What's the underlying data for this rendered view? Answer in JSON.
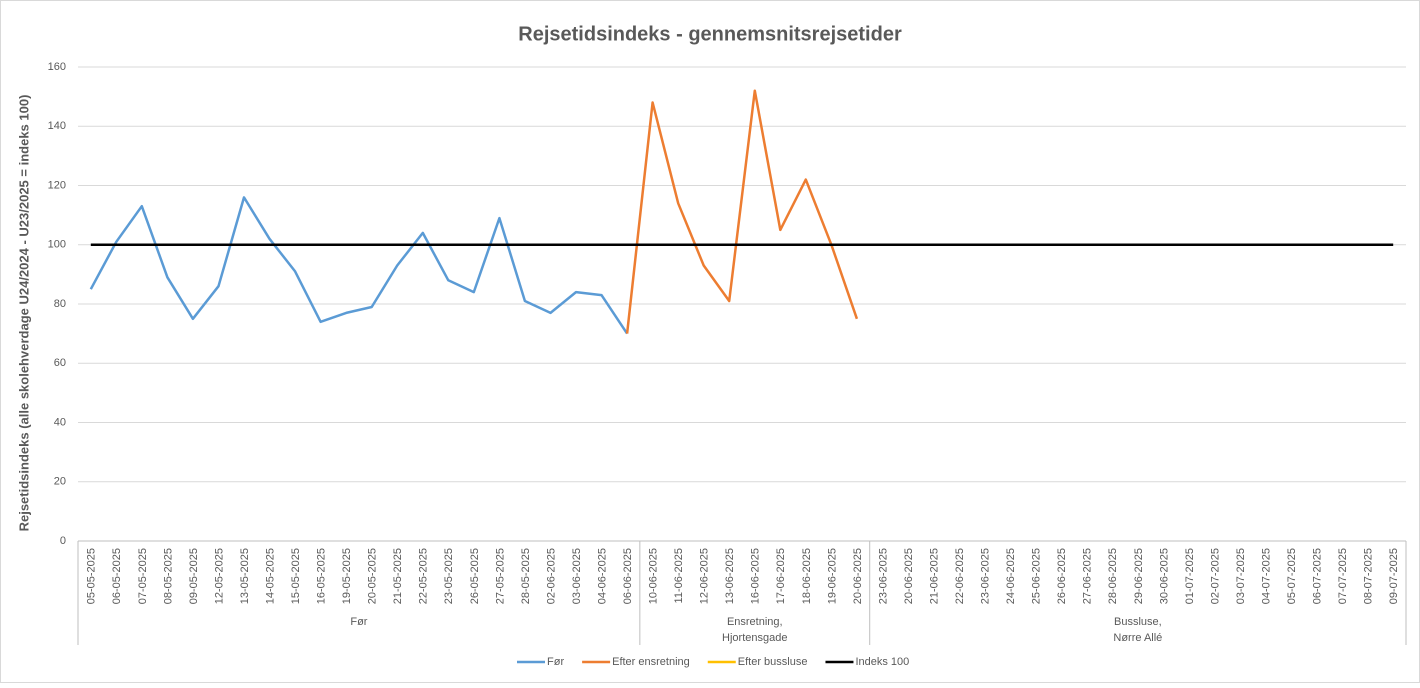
{
  "chart_data": {
    "type": "line",
    "title": "Rejsetidsindeks - gennemsnitsrejsetider",
    "y_label": "Rejsetidsindeks (alle skolehverdage U24/2024 - U23/2025 = indeks 100)",
    "categories": [
      "05-05-2025",
      "06-05-2025",
      "07-05-2025",
      "08-05-2025",
      "09-05-2025",
      "12-05-2025",
      "13-05-2025",
      "14-05-2025",
      "15-05-2025",
      "16-05-2025",
      "19-05-2025",
      "20-05-2025",
      "21-05-2025",
      "22-05-2025",
      "23-05-2025",
      "26-05-2025",
      "27-05-2025",
      "28-05-2025",
      "02-06-2025",
      "03-06-2025",
      "04-06-2025",
      "06-06-2025",
      "10-06-2025",
      "11-06-2025",
      "12-06-2025",
      "13-06-2025",
      "16-06-2025",
      "17-06-2025",
      "18-06-2025",
      "19-06-2025",
      "20-06-2025",
      "23-06-2025",
      "20-06-2025",
      "21-06-2025",
      "22-06-2025",
      "23-06-2025",
      "24-06-2025",
      "25-06-2025",
      "26-06-2025",
      "27-06-2025",
      "28-06-2025",
      "29-06-2025",
      "30-06-2025",
      "01-07-2025",
      "02-07-2025",
      "03-07-2025",
      "04-07-2025",
      "05-07-2025",
      "06-07-2025",
      "07-07-2025",
      "08-07-2025",
      "09-07-2025"
    ],
    "groups": [
      {
        "label": [
          "Før"
        ],
        "span": 22
      },
      {
        "label": [
          "Ensretning,",
          "Hjortensgade"
        ],
        "span": 9
      },
      {
        "label": [
          "Bussluse,",
          "Nørre Allé"
        ],
        "span": 21
      }
    ],
    "series": [
      {
        "name": "Før",
        "color": "#5b9bd5",
        "values": [
          85,
          101,
          113,
          89,
          75,
          86,
          116,
          102,
          91,
          74,
          77,
          79,
          93,
          104,
          88,
          84,
          109,
          81,
          77,
          84,
          83,
          70,
          null,
          null,
          null,
          null,
          null,
          null,
          null,
          null,
          null,
          null,
          null,
          null,
          null,
          null,
          null,
          null,
          null,
          null,
          null,
          null,
          null,
          null,
          null,
          null,
          null,
          null,
          null,
          null,
          null,
          null
        ]
      },
      {
        "name": "Efter ensretning",
        "color": "#ed7d31",
        "values": [
          null,
          null,
          null,
          null,
          null,
          null,
          null,
          null,
          null,
          null,
          null,
          null,
          null,
          null,
          null,
          null,
          null,
          null,
          null,
          null,
          null,
          70,
          148,
          114,
          93,
          81,
          152,
          105,
          122,
          100,
          75,
          null,
          null,
          null,
          null,
          null,
          null,
          null,
          null,
          null,
          null,
          null,
          null,
          null,
          null,
          null,
          null,
          null,
          null,
          null,
          null,
          null
        ]
      },
      {
        "name": "Efter bussluse",
        "color": "#ffc000",
        "values": [
          null,
          null,
          null,
          null,
          null,
          null,
          null,
          null,
          null,
          null,
          null,
          null,
          null,
          null,
          null,
          null,
          null,
          null,
          null,
          null,
          null,
          null,
          null,
          null,
          null,
          null,
          null,
          null,
          null,
          null,
          null,
          null,
          null,
          null,
          null,
          null,
          null,
          null,
          null,
          null,
          null,
          null,
          null,
          null,
          null,
          null,
          null,
          null,
          null,
          null,
          null,
          null
        ]
      },
      {
        "name": "Indeks 100",
        "color": "#000000",
        "values": [
          100,
          100,
          100,
          100,
          100,
          100,
          100,
          100,
          100,
          100,
          100,
          100,
          100,
          100,
          100,
          100,
          100,
          100,
          100,
          100,
          100,
          100,
          100,
          100,
          100,
          100,
          100,
          100,
          100,
          100,
          100,
          100,
          100,
          100,
          100,
          100,
          100,
          100,
          100,
          100,
          100,
          100,
          100,
          100,
          100,
          100,
          100,
          100,
          100,
          100,
          100,
          100
        ]
      }
    ],
    "ylim": [
      0,
      160
    ],
    "yticks": [
      0,
      20,
      40,
      60,
      80,
      100,
      120,
      140,
      160
    ],
    "grid": true,
    "legend": "bottom"
  }
}
